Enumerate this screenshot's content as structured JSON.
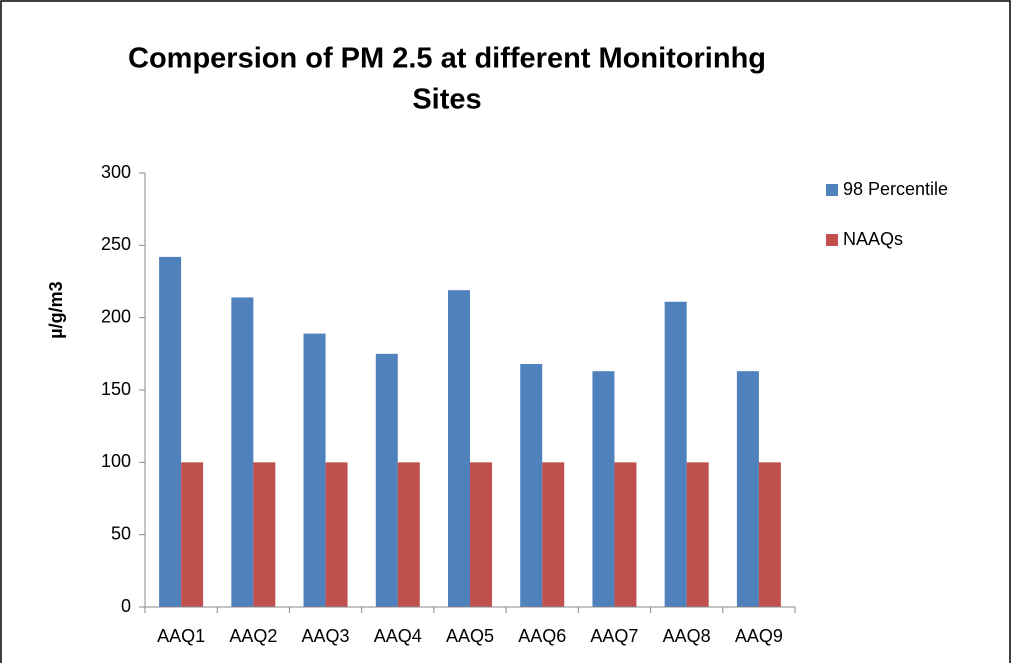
{
  "chart_data": {
    "type": "bar",
    "title": [
      "Compersion of PM 2.5 at different Monitorinhg",
      "Sites"
    ],
    "y_label": "µ/g/m3",
    "categories": [
      "AAQ1",
      "AAQ2",
      "AAQ3",
      "AAQ4",
      "AAQ5",
      "AAQ6",
      "AAQ7",
      "AAQ8",
      "AAQ9"
    ],
    "series": [
      {
        "name": "98 Percentile",
        "color": "#4f81bd",
        "values": [
          242,
          214,
          189,
          175,
          219,
          168,
          163,
          211,
          163
        ]
      },
      {
        "name": "NAAQs",
        "color": "#c0504d",
        "values": [
          100,
          100,
          100,
          100,
          100,
          100,
          100,
          100,
          100
        ]
      }
    ],
    "ylim": [
      0,
      300
    ],
    "yticks": [
      0,
      50,
      100,
      150,
      200,
      250,
      300
    ],
    "grid": false,
    "legend": "right"
  }
}
